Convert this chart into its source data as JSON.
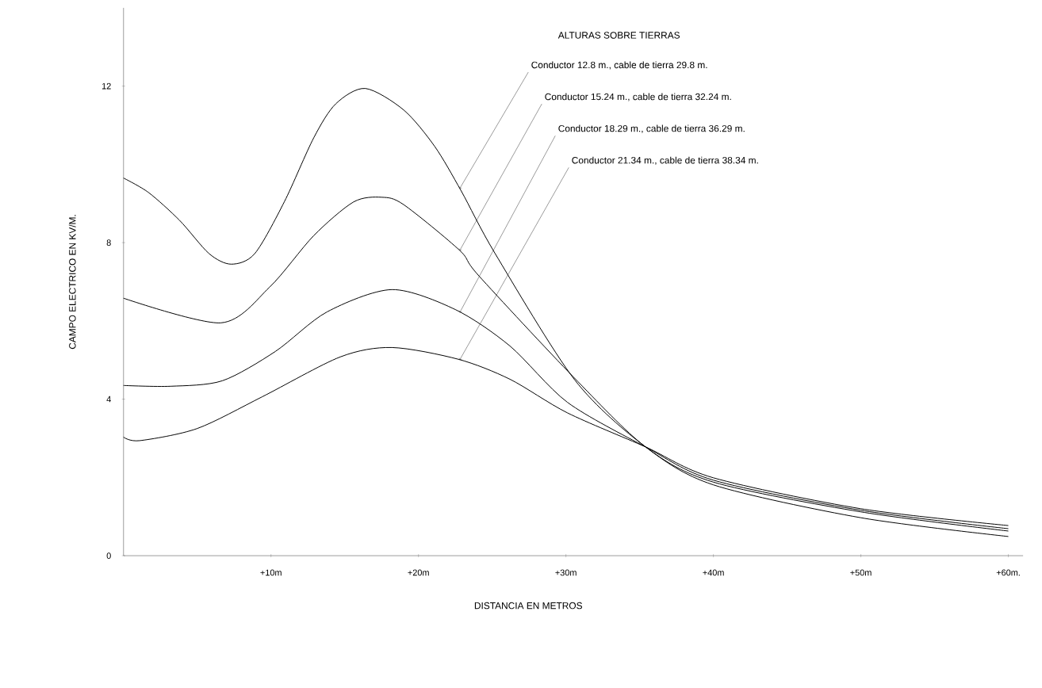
{
  "chart_data": {
    "type": "line",
    "xlabel": "DISTANCIA EN METROS",
    "ylabel": "CAMPO ELECTRICO EN KV/M.",
    "legend_title": "ALTURAS SOBRE TIERRAS",
    "legend": "top right",
    "marker": "none",
    "line_style": "solid",
    "grid": false,
    "xlim": [
      0,
      61
    ],
    "ylim": [
      0,
      14
    ],
    "xticks": [
      {
        "value": 10,
        "label": "+10m"
      },
      {
        "value": 20,
        "label": "+20m"
      },
      {
        "value": 30,
        "label": "+30m"
      },
      {
        "value": 40,
        "label": "+40m"
      },
      {
        "value": 50,
        "label": "+50m"
      },
      {
        "value": 60,
        "label": "+60m."
      }
    ],
    "yticks": [
      0,
      4,
      8,
      12
    ],
    "series": [
      {
        "name": "Conductor 12.8 m., cable de tierra 29.8 m.",
        "color": "#000000",
        "x": [
          0,
          1.7,
          3.8,
          5.8,
          7.3,
          8.9,
          10.9,
          12.9,
          14.4,
          16.4,
          19.0,
          21.1,
          22.9,
          25.2,
          30.6,
          35.4,
          40,
          50,
          60
        ],
        "values": [
          9.65,
          9.28,
          8.57,
          7.72,
          7.45,
          7.72,
          9.04,
          10.68,
          11.55,
          11.94,
          11.39,
          10.46,
          9.32,
          7.72,
          4.49,
          2.78,
          1.81,
          0.97,
          0.49
        ]
      },
      {
        "name": "Conductor 15.24 m., cable de tierra 32.24 m.",
        "color": "#000000",
        "x": [
          0,
          6.6,
          9.9,
          12.9,
          15.6,
          17.5,
          19.0,
          22.8,
          24.1,
          30.5,
          35.4,
          40,
          50,
          60
        ],
        "values": [
          6.58,
          5.95,
          6.86,
          8.18,
          9.04,
          9.16,
          8.97,
          7.8,
          7.15,
          4.57,
          2.78,
          1.88,
          1.12,
          0.63
        ]
      },
      {
        "name": "Conductor 18.29 m., cable de tierra 36.29 m.",
        "color": "#000000",
        "x": [
          0,
          3.2,
          6.7,
          10.3,
          13.8,
          18.2,
          22.5,
          26.2,
          30.1,
          35.4,
          40,
          50,
          60
        ],
        "values": [
          4.35,
          4.33,
          4.47,
          5.22,
          6.23,
          6.8,
          6.29,
          5.36,
          3.92,
          2.78,
          1.93,
          1.16,
          0.69
        ]
      },
      {
        "name": "Conductor 21.34 m., cable de tierra 38.34 m.",
        "color": "#000000",
        "x": [
          0,
          1.1,
          5.0,
          9.4,
          14.7,
          18.2,
          22.7,
          26.2,
          30.1,
          35.4,
          40,
          50,
          60
        ],
        "values": [
          3.03,
          2.94,
          3.25,
          4.06,
          5.08,
          5.32,
          5.02,
          4.51,
          3.65,
          2.78,
          1.99,
          1.2,
          0.77
        ]
      }
    ]
  }
}
